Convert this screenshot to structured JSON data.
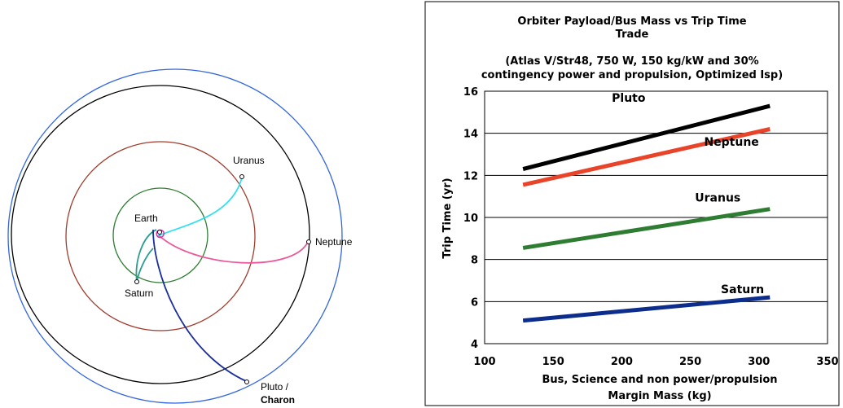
{
  "orbit_diagram": {
    "labels": {
      "earth": "Earth",
      "saturn": "Saturn",
      "uranus": "Uranus",
      "neptune": "Neptune",
      "pluto_line1": "Pluto /",
      "pluto_line2": "Charon"
    },
    "colors": {
      "pluto_orbit": "#3366dd",
      "neptune_orbit": "#000000",
      "uranus_orbit": "#a03c2c",
      "saturn_orbit": "#2e7d32",
      "uranus_trajectory": "#33e0f0",
      "neptune_trajectory": "#ee5599",
      "saturn_trajectory": "#2a9d8f",
      "pluto_trajectory": "#1a2e9e"
    }
  },
  "chart_data": {
    "type": "line",
    "title_line1": "Orbiter Payload/Bus Mass vs Trip Time",
    "title_line2": "Trade",
    "subtitle_line1": "(Atlas V/Str48, 750 W, 150 kg/kW and 30%",
    "subtitle_line2": "contingency power and propulsion, Optimized Isp)",
    "xlabel_line1": "Bus, Science  and non power/propulsion",
    "xlabel_line2": "Margin  Mass (kg)",
    "ylabel": "Trip Time (yr)",
    "xlim": [
      100,
      350
    ],
    "ylim": [
      4,
      16
    ],
    "xticks": [
      "100",
      "150",
      "200",
      "250",
      "300",
      "350"
    ],
    "yticks": [
      "4",
      "6",
      "8",
      "10",
      "12",
      "14",
      "16"
    ],
    "grid": "horizontal",
    "series": [
      {
        "name": "Pluto",
        "color": "#000000",
        "x": [
          128,
          308
        ],
        "y": [
          12.3,
          15.3
        ]
      },
      {
        "name": "Neptune",
        "color": "#e8442a",
        "x": [
          128,
          308
        ],
        "y": [
          11.55,
          14.2
        ]
      },
      {
        "name": "Uranus",
        "color": "#2e7d32",
        "x": [
          128,
          308
        ],
        "y": [
          8.55,
          10.4
        ]
      },
      {
        "name": "Saturn",
        "color": "#0d2d8c",
        "x": [
          128,
          308
        ],
        "y": [
          5.1,
          6.2
        ]
      }
    ]
  }
}
